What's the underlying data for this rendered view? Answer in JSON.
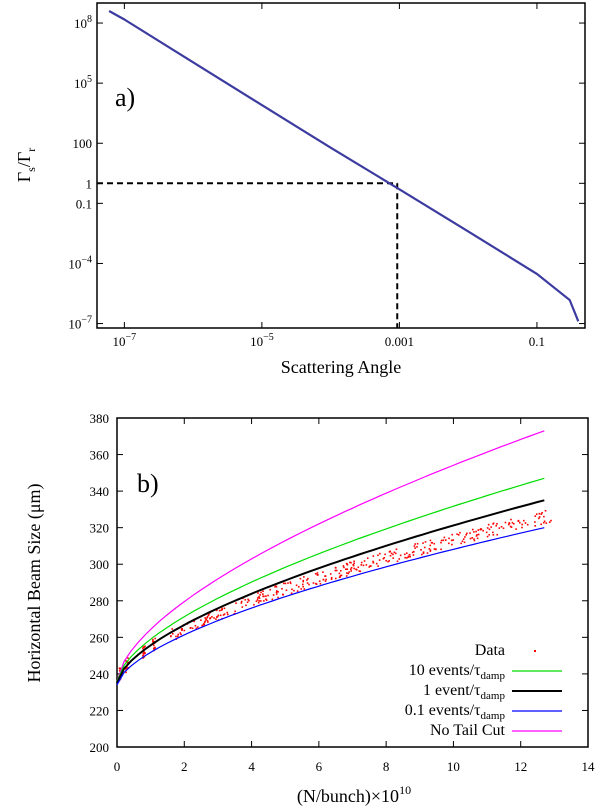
{
  "chart_data": [
    {
      "panel_label": "a)",
      "type": "line",
      "xlabel": "Scattering Angle",
      "ylabel": "Γs/Γr",
      "x_scale": "log",
      "y_scale": "log",
      "xlim": [
        4e-08,
        0.5
      ],
      "ylim": [
        6e-08,
        1000000000.0
      ],
      "x_ticks": [
        {
          "value": 1e-07,
          "label": "10",
          "sup": "−7"
        },
        {
          "value": 1e-05,
          "label": "10",
          "sup": "−5"
        },
        {
          "value": 0.001,
          "label": "0.001",
          "sup": ""
        },
        {
          "value": 0.1,
          "label": "0.1",
          "sup": ""
        }
      ],
      "y_ticks": [
        {
          "value": 1e-07,
          "label": "10",
          "sup": "−7"
        },
        {
          "value": 0.0001,
          "label": "10",
          "sup": "−4"
        },
        {
          "value": 0.1,
          "label": "0.1",
          "sup": ""
        },
        {
          "value": 1,
          "label": "1",
          "sup": ""
        },
        {
          "value": 100,
          "label": "100",
          "sup": ""
        },
        {
          "value": 100000.0,
          "label": "10",
          "sup": "5"
        },
        {
          "value": 100000000.0,
          "label": "10",
          "sup": "8"
        }
      ],
      "series": [
        {
          "color": "#3c3ca0",
          "x": [
            6e-08,
            1e-07,
            1e-06,
            1e-05,
            0.0001,
            0.001,
            0.01,
            0.1,
            0.3,
            0.4
          ],
          "y": [
            400000000.0,
            150000000.0,
            1100000.0,
            8000,
            60,
            0.5,
            0.004,
            3e-05,
            1.5e-06,
            1.3e-07
          ]
        }
      ],
      "reference_lines": {
        "x": 0.00093,
        "y": 1,
        "style": "dashed"
      }
    },
    {
      "panel_label": "b)",
      "type": "line",
      "xlabel": "(N/bunch)×10",
      "xlabel_sup": "10",
      "ylabel": "Horizontal Beam Size (μm)",
      "xlim": [
        0,
        14
      ],
      "ylim": [
        200,
        380
      ],
      "x_ticks": [
        0,
        2,
        4,
        6,
        8,
        10,
        12,
        14
      ],
      "y_ticks": [
        200,
        220,
        240,
        260,
        280,
        300,
        320,
        340,
        360,
        380
      ],
      "legend_position": "bottom-right",
      "series": [
        {
          "name": "No Tail Cut",
          "color": "#ff00ff",
          "x_end": 12.7,
          "y0": 236,
          "y_end": 373
        },
        {
          "name": "10 events/τdamp",
          "color": "#00dd00",
          "x_end": 12.7,
          "y0": 236,
          "y_end": 347
        },
        {
          "name": "1 event/τdamp",
          "color": "#000000",
          "x_end": 12.7,
          "y0": 235,
          "y_end": 335
        },
        {
          "name": "0.1 events/τdamp",
          "color": "#0000ff",
          "x_end": 12.7,
          "y0": 234,
          "y_end": 320
        }
      ],
      "data_points": {
        "name": "Data",
        "color": "#ff0000",
        "x_range": [
          0,
          13
        ],
        "y0": 236,
        "y_end": 327
      },
      "legend": [
        {
          "label": "Data",
          "sub": "",
          "kind": "dot",
          "color": "#ff0000"
        },
        {
          "label": "10 events/τ",
          "sub": "damp",
          "kind": "line",
          "color": "#00dd00"
        },
        {
          "label": "1 event/τ",
          "sub": "damp",
          "kind": "line",
          "color": "#000000"
        },
        {
          "label": "0.1 events/τ",
          "sub": "damp",
          "kind": "line",
          "color": "#0000ff"
        },
        {
          "label": "No Tail Cut",
          "sub": "",
          "kind": "line",
          "color": "#ff00ff"
        }
      ]
    }
  ]
}
